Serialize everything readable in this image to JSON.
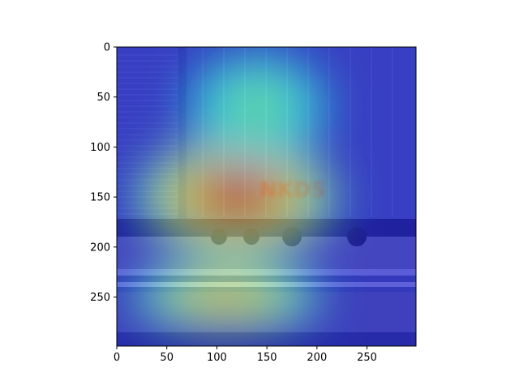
{
  "chart_data": {
    "type": "heatmap",
    "title": "",
    "xlabel": "",
    "ylabel": "",
    "xlim": [
      0,
      299
    ],
    "ylim": [
      299,
      0
    ],
    "x_ticks": [
      0,
      50,
      100,
      150,
      200,
      250
    ],
    "y_ticks": [
      0,
      50,
      100,
      150,
      200,
      250
    ],
    "x_tick_labels": [
      "0",
      "50",
      "100",
      "150",
      "200",
      "250"
    ],
    "y_tick_labels": [
      "0",
      "50",
      "100",
      "150",
      "200",
      "250"
    ],
    "image_content": "graffiti-covered boxcar on railway track",
    "overlay_colormap": "jet",
    "heat_regions": [
      {
        "cx": 120,
        "cy": 150,
        "rx": 100,
        "ry": 60,
        "level": 1.0
      },
      {
        "cx": 110,
        "cy": 250,
        "rx": 95,
        "ry": 35,
        "level": 0.75
      },
      {
        "cx": 140,
        "cy": 60,
        "rx": 70,
        "ry": 55,
        "level": 0.5
      }
    ],
    "grid": false
  }
}
